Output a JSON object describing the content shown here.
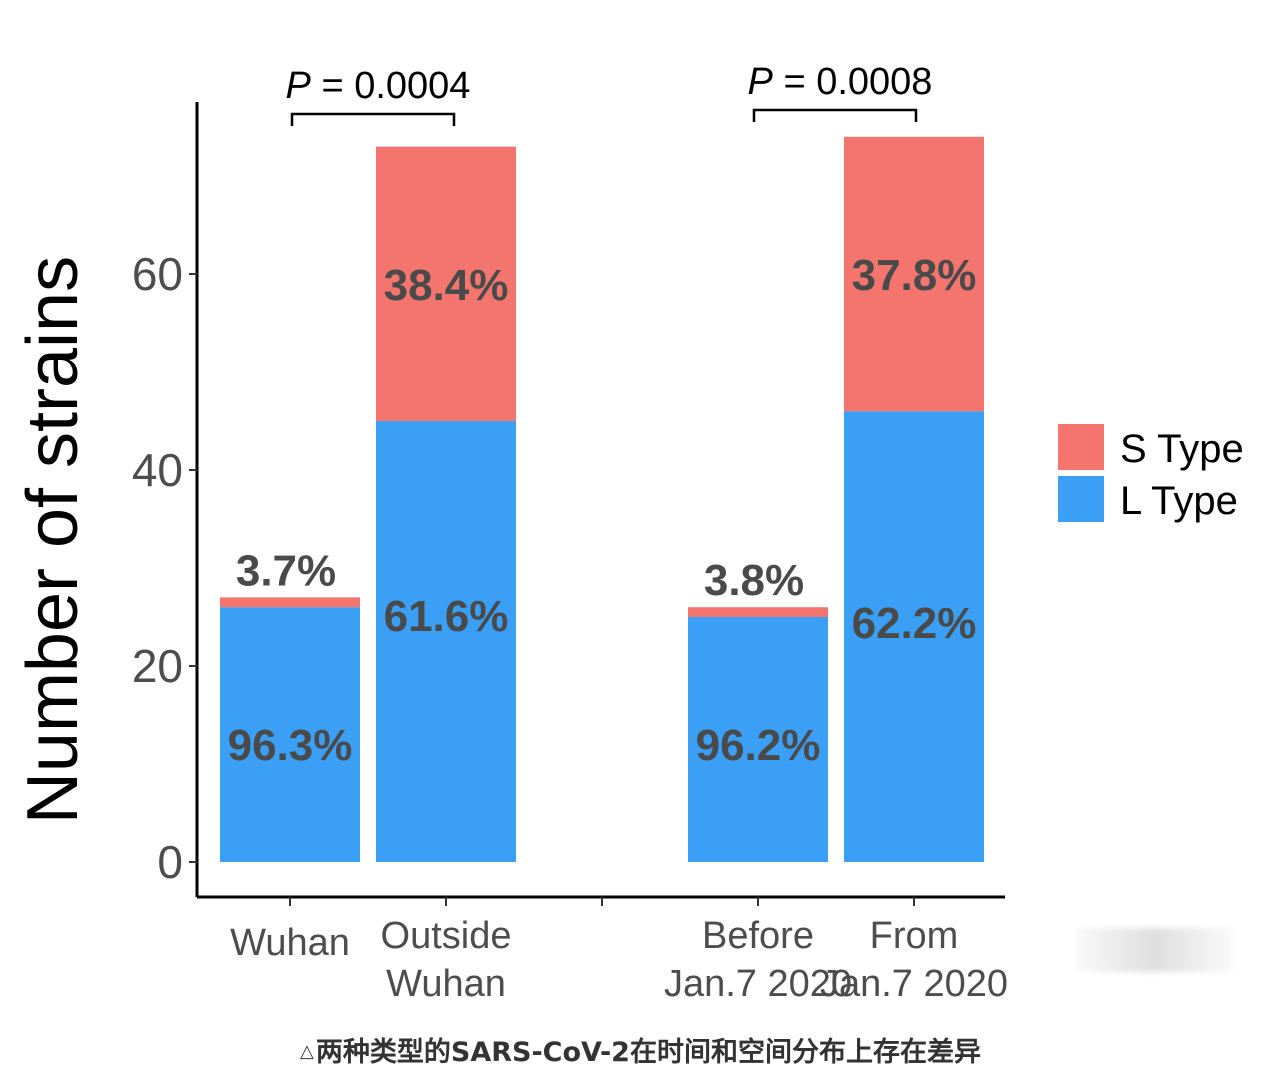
{
  "chart_data": {
    "type": "bar",
    "stacked": true,
    "ylabel": "Number of strains",
    "ylim": [
      0,
      75
    ],
    "yticks": [
      0,
      20,
      40,
      60
    ],
    "grid": false,
    "legend_position": "right",
    "categories": [
      "Wuhan",
      "Outside Wuhan",
      "Before Jan.7 2020",
      "From Jan.7 2020"
    ],
    "category_lines": [
      [
        "Wuhan"
      ],
      [
        "Outside",
        "Wuhan"
      ],
      [
        "Before",
        "Jan.7 2020"
      ],
      [
        "From",
        "Jan.7 2020"
      ]
    ],
    "series": [
      {
        "name": "L Type",
        "color": "#3a9ff5",
        "values": [
          26,
          45,
          25,
          46
        ],
        "labels": [
          "96.3%",
          "61.6%",
          "96.2%",
          "62.2%"
        ]
      },
      {
        "name": "S Type",
        "color": "#f4756d",
        "values": [
          1,
          28,
          1,
          28
        ],
        "labels": [
          "3.7%",
          "38.4%",
          "3.8%",
          "37.8%"
        ]
      }
    ],
    "legend": [
      "S Type",
      "L Type"
    ],
    "annotations": [
      {
        "p_italic": "P",
        "text": " = 0.0004",
        "between": [
          "Wuhan",
          "Outside Wuhan"
        ]
      },
      {
        "p_italic": "P",
        "text": " = 0.0008",
        "between": [
          "Before Jan.7 2020",
          "From Jan.7 2020"
        ]
      }
    ]
  },
  "caption": {
    "marker": "△",
    "text": "两种类型的SARS-CoV-2在时间和空间分布上存在差异"
  }
}
